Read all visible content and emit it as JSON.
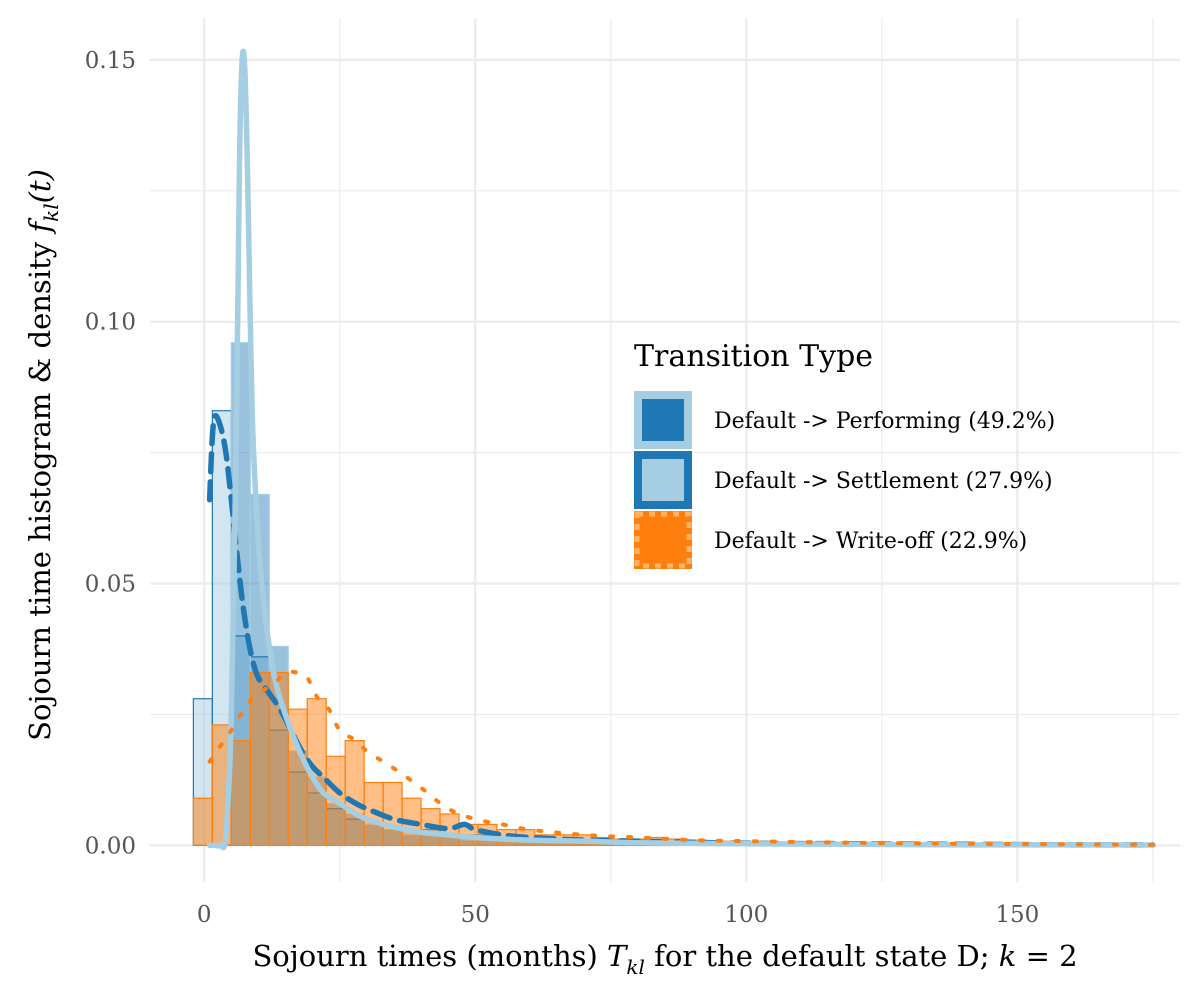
{
  "chart_data": {
    "type": "histogram+density",
    "xlim": [
      -10,
      180
    ],
    "ylim": [
      -0.007,
      0.158
    ],
    "x_ticks": [
      0,
      50,
      100,
      150
    ],
    "y_ticks": [
      0,
      0.05,
      0.1,
      0.15
    ],
    "x_tick_labels": [
      "0",
      "50",
      "100",
      "150"
    ],
    "y_tick_labels": [
      "0.00",
      "0.05",
      "0.10",
      "0.15"
    ],
    "xlabel": {
      "prefix": "Sojourn times (months) ",
      "math_symbol": "T",
      "math_subscript": "kl",
      "suffix": " for the default state D; ",
      "math_k": "k",
      "equals": " = 2"
    },
    "ylabel": {
      "prefix": "Sojourn time histogram & density ",
      "math_symbol": "f",
      "math_subscript": "kl",
      "math_arg": "(t)"
    },
    "grid": true,
    "legend": {
      "title": "Transition Type",
      "position": "center-right",
      "entries": [
        {
          "label": "Default -> Performing (49.2%)",
          "fill": "#1f77b4",
          "line": "#a6cee3",
          "dash": "solid"
        },
        {
          "label": "Default -> Settlement (27.9%)",
          "fill": "#a6cee3",
          "line": "#1f77b4",
          "dash": "dashed"
        },
        {
          "label": "Default -> Write-off (22.9%)",
          "fill": "#ff7f0e",
          "line": "#ff7f0e",
          "dash": "dotted"
        }
      ]
    },
    "histograms": [
      {
        "name": "Default -> Settlement (27.9%)",
        "bin_start": -2,
        "bin_width": 3.5,
        "values": [
          0.028,
          0.083,
          0.04,
          0.036,
          0.022,
          0.014,
          0.01,
          0.007,
          0.005,
          0.004,
          0.003,
          0.003,
          0.003,
          0.002,
          0.002,
          0.002,
          0.001,
          0.001,
          0.001,
          0.001,
          0.001,
          0.001,
          0.001,
          0.001
        ],
        "fill": "#a6cee3",
        "stroke": "#1f77b4",
        "opacity": 0.5
      },
      {
        "name": "Default -> Performing (49.2%)",
        "bin_start": 5,
        "bin_width": 3.5,
        "values": [
          0.096,
          0.067,
          0.038,
          0.018,
          0.013,
          0.008,
          0.006,
          0.004,
          0.003,
          0.002,
          0.002,
          0.002,
          0.001,
          0.001,
          0.001,
          0.001,
          0.001,
          0.0008,
          0.0006,
          0.0005,
          0.0005
        ],
        "fill": "#1f77b4",
        "stroke": "#a6cee3",
        "opacity": 0.45
      },
      {
        "name": "Default -> Write-off (22.9%)",
        "bin_start": -2,
        "bin_width": 3.5,
        "values": [
          0.009,
          0.023,
          0.02,
          0.033,
          0.033,
          0.026,
          0.028,
          0.017,
          0.02,
          0.012,
          0.012,
          0.009,
          0.007,
          0.006,
          0.004,
          0.004,
          0.003,
          0.003,
          0.002,
          0.002,
          0.002,
          0.0015,
          0.0012,
          0.0012,
          0.0015,
          0.0012,
          0.001,
          0.0008,
          0.0008,
          0.0006,
          0.0006,
          0.0005
        ],
        "fill": "#ff7f0e",
        "stroke": "#ff7f0e",
        "opacity": 0.5
      }
    ],
    "densities": [
      {
        "name": "Default -> Settlement (27.9%)",
        "color": "#1f77b4",
        "dash": "dashed",
        "x": [
          1,
          1.5,
          2,
          3,
          4,
          5,
          6,
          7,
          8,
          9,
          10,
          12,
          14,
          16,
          18,
          20,
          22,
          25,
          28,
          30,
          35,
          40,
          45,
          48,
          50,
          55,
          60,
          70,
          80,
          90,
          100,
          120,
          140,
          160,
          175
        ],
        "y": [
          0.066,
          0.078,
          0.082,
          0.08,
          0.075,
          0.066,
          0.056,
          0.047,
          0.04,
          0.035,
          0.032,
          0.029,
          0.026,
          0.022,
          0.018,
          0.015,
          0.013,
          0.01,
          0.008,
          0.007,
          0.005,
          0.004,
          0.0032,
          0.004,
          0.003,
          0.002,
          0.0015,
          0.001,
          0.0008,
          0.0006,
          0.0004,
          0.0003,
          0.0002,
          0.0001,
          0.0001
        ]
      },
      {
        "name": "Default -> Performing (49.2%)",
        "color": "#a6cee3",
        "dash": "solid",
        "x": [
          1,
          2,
          3,
          4,
          5,
          6,
          6.5,
          7,
          7.5,
          8,
          8.5,
          9,
          10,
          11,
          12,
          13,
          14,
          16,
          18,
          20,
          22,
          25,
          28,
          30,
          35,
          40,
          45,
          50,
          60,
          70,
          80,
          100,
          120,
          140,
          160,
          175
        ],
        "y": [
          0,
          0,
          0,
          0.002,
          0.025,
          0.085,
          0.13,
          0.15,
          0.148,
          0.128,
          0.1,
          0.078,
          0.058,
          0.046,
          0.038,
          0.032,
          0.028,
          0.022,
          0.017,
          0.013,
          0.01,
          0.008,
          0.006,
          0.005,
          0.0035,
          0.0025,
          0.002,
          0.0015,
          0.001,
          0.0008,
          0.0005,
          0.0003,
          0.0002,
          0.0001,
          0.0001,
          5e-05
        ]
      },
      {
        "name": "Default -> Write-off (22.9%)",
        "color": "#ff7f0e",
        "dash": "dotted",
        "x": [
          1,
          3,
          5,
          8,
          10,
          13,
          15,
          17,
          19,
          21,
          23,
          25,
          28,
          30,
          33,
          36,
          40,
          45,
          50,
          55,
          60,
          70,
          80,
          90,
          100,
          120,
          140,
          160,
          175
        ],
        "y": [
          0.016,
          0.019,
          0.022,
          0.027,
          0.029,
          0.031,
          0.033,
          0.033,
          0.032,
          0.028,
          0.026,
          0.022,
          0.02,
          0.018,
          0.016,
          0.014,
          0.011,
          0.007,
          0.005,
          0.004,
          0.003,
          0.002,
          0.0015,
          0.001,
          0.0008,
          0.0005,
          0.0003,
          0.0002,
          0.0001
        ]
      }
    ]
  }
}
